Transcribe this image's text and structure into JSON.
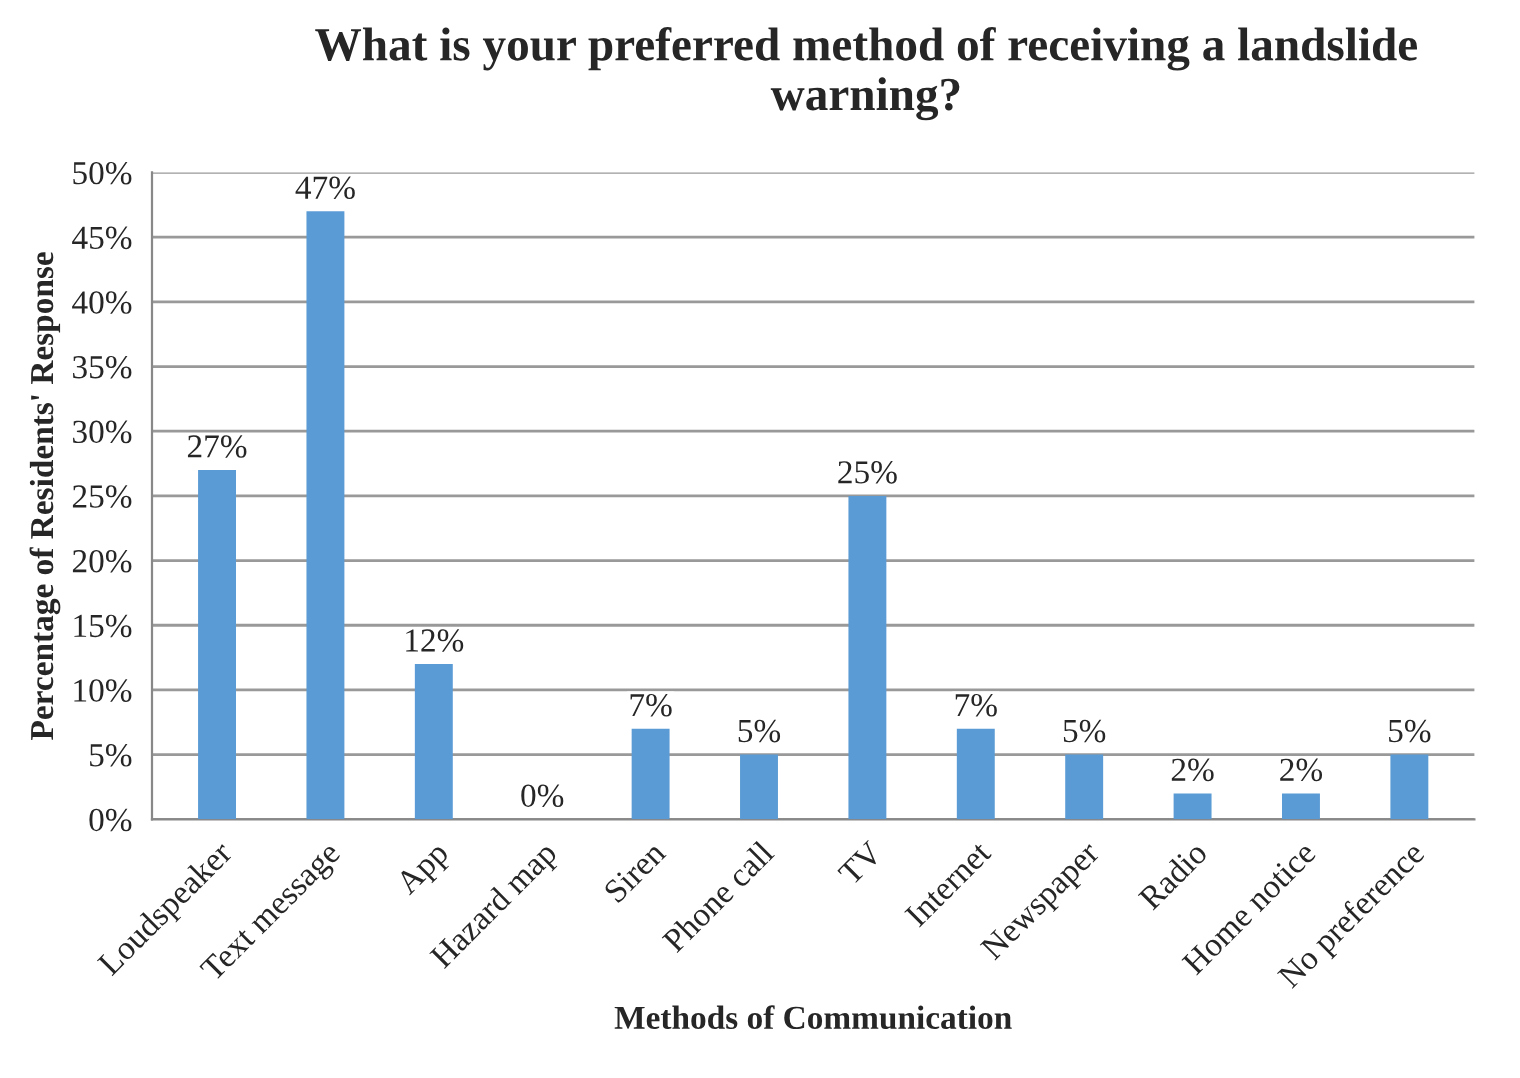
{
  "chart_data": {
    "type": "bar",
    "title": "What is your preferred method of receiving a landslide warning?",
    "xlabel": "Methods of Communication",
    "ylabel": "Percentage of Residents' Response",
    "categories": [
      "Loudspeaker",
      "Text message",
      "App",
      "Hazard map",
      "Siren",
      "Phone call",
      "TV",
      "Internet",
      "Newspaper",
      "Radio",
      "Home notice",
      "No preference"
    ],
    "values": [
      27,
      47,
      12,
      0,
      7,
      5,
      25,
      7,
      5,
      2,
      2,
      5
    ],
    "value_labels": [
      "27%",
      "47%",
      "12%",
      "0%",
      "7%",
      "5%",
      "25%",
      "7%",
      "5%",
      "2%",
      "2%",
      "5%"
    ],
    "color": "#5b9bd5",
    "ylim": [
      0,
      50
    ],
    "yticks": [
      {
        "value": 0,
        "label": "0%"
      },
      {
        "value": 5,
        "label": "5%"
      },
      {
        "value": 10,
        "label": "10%"
      },
      {
        "value": 15,
        "label": "15%"
      },
      {
        "value": 20,
        "label": "20%"
      },
      {
        "value": 25,
        "label": "25%"
      },
      {
        "value": 30,
        "label": "30%"
      },
      {
        "value": 35,
        "label": "35%"
      },
      {
        "value": 40,
        "label": "40%"
      },
      {
        "value": 45,
        "label": "45%"
      },
      {
        "value": 50,
        "label": "50%"
      }
    ],
    "grid": "y",
    "legend": false
  }
}
